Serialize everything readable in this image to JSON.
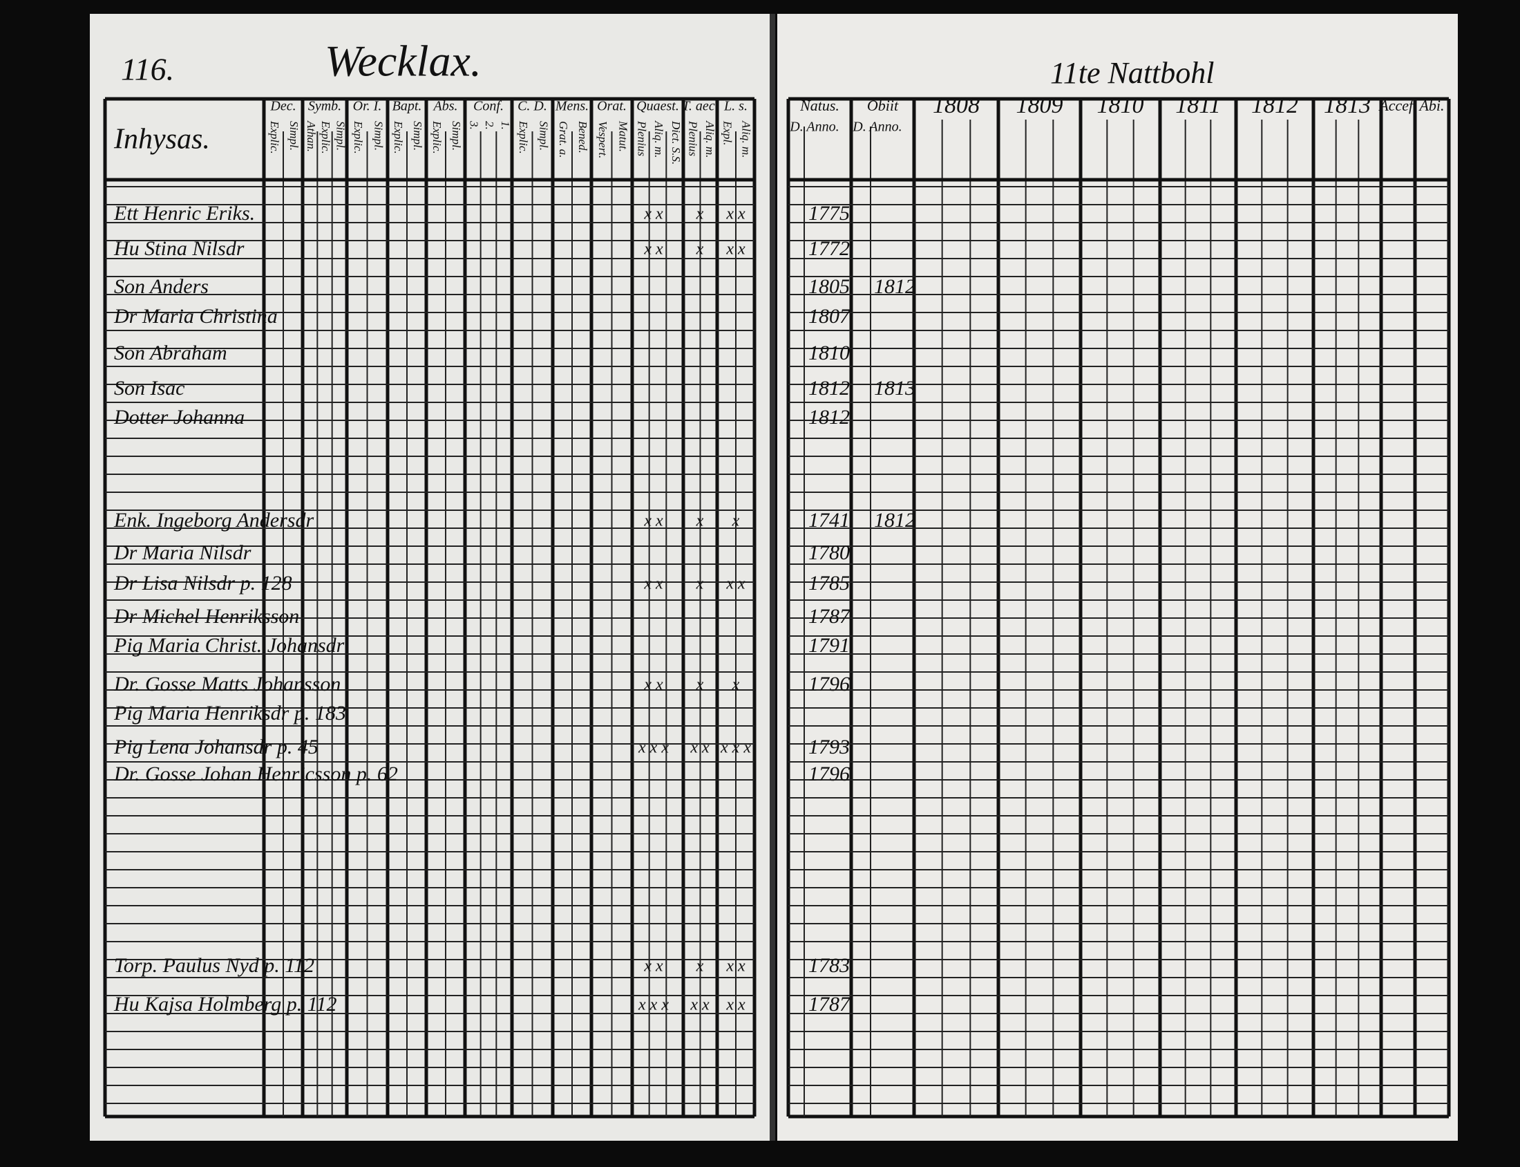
{
  "header": {
    "page_number": "116.",
    "village": "Wecklax.",
    "right_heading": "11te Nattbohl",
    "left_title": "Inhysas."
  },
  "left_columns": [
    {
      "title": "Dec.",
      "sub": [
        "Explic.",
        "Simpl."
      ]
    },
    {
      "title": "Symb.",
      "sub": [
        "Athan.",
        "Explic.",
        "Simpl."
      ]
    },
    {
      "title": "Or. I.",
      "sub": [
        "Explic.",
        "Simpl."
      ]
    },
    {
      "title": "Bapt.",
      "sub": [
        "Explic.",
        "Simpl."
      ]
    },
    {
      "title": "Abs.",
      "sub": [
        "Explic.",
        "Simpl."
      ]
    },
    {
      "title": "Conf.",
      "sub": [
        "3.",
        "2.",
        "1."
      ]
    },
    {
      "title": "C. D.",
      "sub": [
        "Explic.",
        "Simpl."
      ]
    },
    {
      "title": "Mens.",
      "sub": [
        "Grat. a.",
        "Bened."
      ]
    },
    {
      "title": "Orat.",
      "sub": [
        "Vespert.",
        "Matut."
      ]
    },
    {
      "title": "Quaest.",
      "sub": [
        "Plenius",
        "Aliq. m.",
        "Dict. S.S."
      ]
    },
    {
      "title": "T. aec.",
      "sub": [
        "Plenius",
        "Aliq. m."
      ]
    },
    {
      "title": "L. s.",
      "sub": [
        "Expl.",
        "Aliq. m."
      ]
    }
  ],
  "right_columns": [
    {
      "title": "Natus.",
      "sub": [
        "D.",
        "Anno."
      ]
    },
    {
      "title": "Obiit",
      "sub": [
        "D.",
        "Anno."
      ]
    },
    {
      "title": "1808"
    },
    {
      "title": "1809"
    },
    {
      "title": "1810"
    },
    {
      "title": "1811"
    },
    {
      "title": "1812"
    },
    {
      "title": "1813"
    },
    {
      "title": "Accef."
    },
    {
      "title": "Abi."
    }
  ],
  "rows": [
    {
      "name": "Ett Henric Eriks.",
      "born": "1775",
      "marks": [
        "x x",
        "x",
        "x x"
      ]
    },
    {
      "name": "Hu Stina Nilsdr",
      "born": "1772",
      "marks": [
        "x x",
        "x",
        "x x"
      ]
    },
    {
      "name": "Son Anders",
      "born": "1805",
      "died": "1812"
    },
    {
      "name": "Dr Maria Christina",
      "born": "1807"
    },
    {
      "name": "Son Abraham",
      "born": "1810"
    },
    {
      "name": "Son Isac",
      "born": "1812",
      "died": "1813"
    },
    {
      "name": "Dotter Johanna",
      "born": "1812"
    },
    {
      "name": "Enk. Ingeborg Andersdr",
      "born": "1741",
      "died": "1812",
      "marks": [
        "x x",
        "x",
        "x"
      ]
    },
    {
      "name": "Dr Maria Nilsdr",
      "born": "1780"
    },
    {
      "name": "Dr Lisa Nilsdr p. 128",
      "born": "1785",
      "marks": [
        "x x",
        "x",
        "x x"
      ]
    },
    {
      "name": "Dr Michel Henriksson",
      "born": "1787"
    },
    {
      "name": "Pig Maria Christ. Johansdr",
      "born": "1791"
    },
    {
      "name": "Dr. Gosse Matts Johansson",
      "born": "1796",
      "marks": [
        "x x",
        "x",
        "x"
      ]
    },
    {
      "name": "Pig Maria Henriksdr p. 183"
    },
    {
      "name": "Pig Lena Johansdr p. 45",
      "born": "1793",
      "marks": [
        "x x x",
        "x x",
        "x x x"
      ]
    },
    {
      "name": "Dr. Gosse Johan Henricsson p. 62",
      "born": "1796"
    },
    {
      "name": "Torp. Paulus Nyd p. 112",
      "born": "1783",
      "marks": [
        "x x",
        "x",
        "x x"
      ]
    },
    {
      "name": "Hu Kajsa Holmberg p. 112",
      "born": "1787",
      "marks": [
        "x x x",
        "x x",
        "x x"
      ]
    }
  ]
}
